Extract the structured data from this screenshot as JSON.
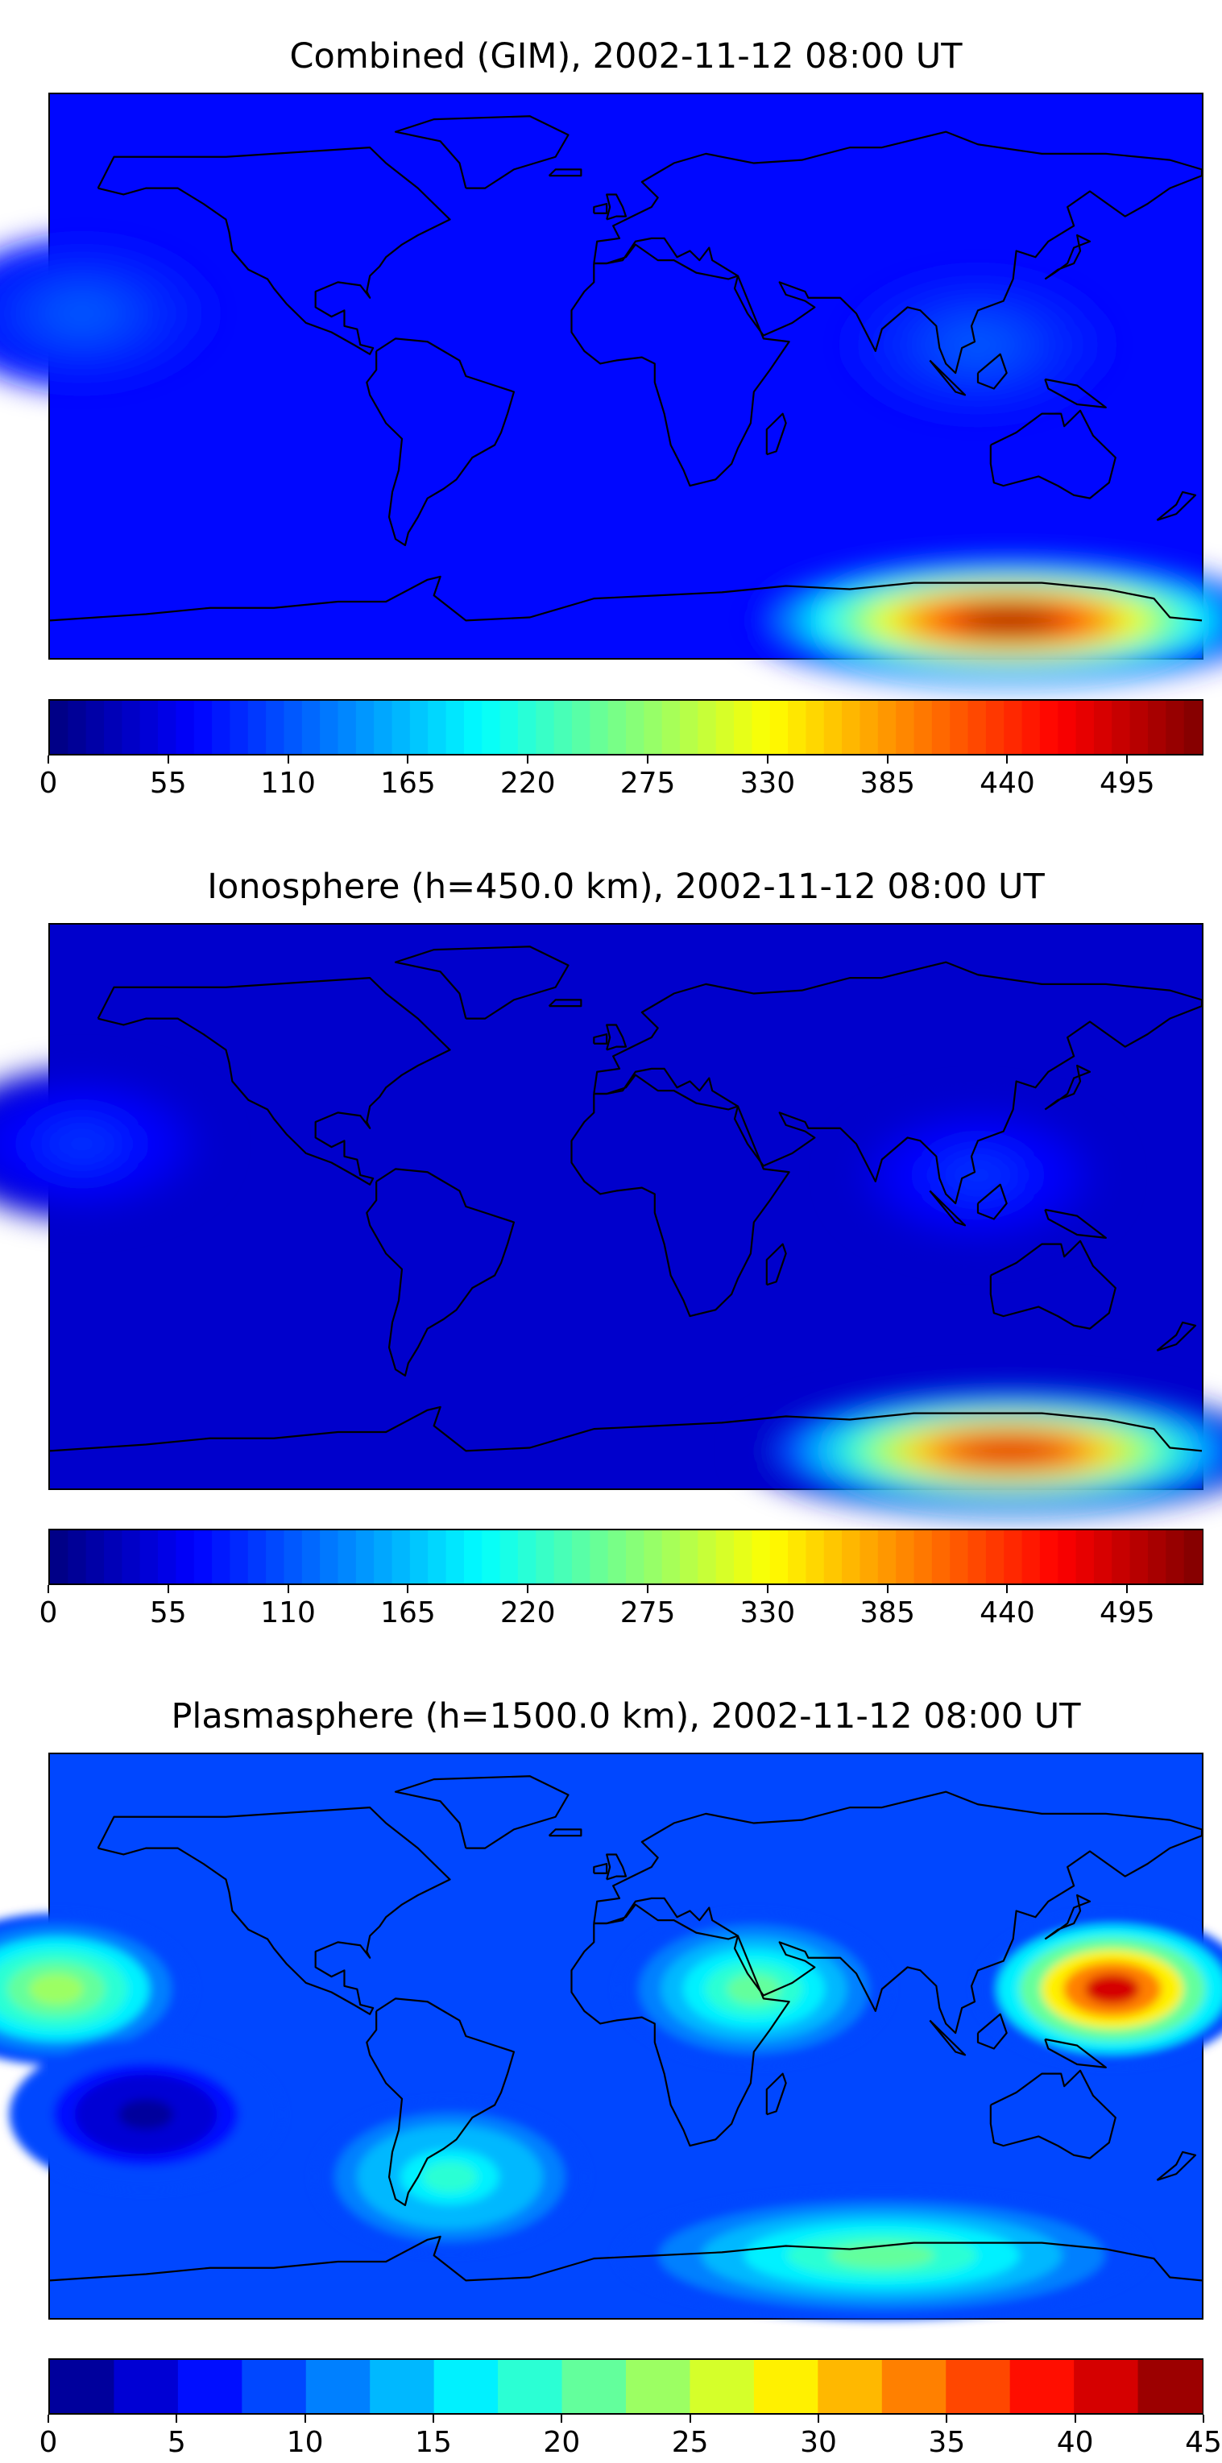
{
  "panels": [
    {
      "id": "combined",
      "title": "Combined (GIM), 2002-11-12 08:00 UT",
      "colormap": "jet",
      "colorbar": {
        "type": "continuous",
        "vmin": 0,
        "vmax": 530,
        "ticks": [
          0,
          55,
          110,
          165,
          220,
          275,
          330,
          385,
          440,
          495
        ]
      },
      "background_level": 70,
      "features": [
        {
          "name": "antarctic-maximum",
          "lon": 120,
          "lat": -78,
          "peak": 515
        },
        {
          "name": "asian-enhancement",
          "lon": 110,
          "lat": 10,
          "peak": 110
        },
        {
          "name": "pacific-enhancement",
          "lon": -170,
          "lat": 20,
          "peak": 110
        }
      ]
    },
    {
      "id": "ionosphere",
      "title": "Ionosphere  (h=450.0 km), 2002-11-12 08:00 UT",
      "colormap": "jet",
      "colorbar": {
        "type": "continuous",
        "vmin": 0,
        "vmax": 530,
        "ticks": [
          0,
          55,
          110,
          165,
          220,
          275,
          330,
          385,
          440,
          495
        ]
      },
      "background_level": 40,
      "features": [
        {
          "name": "antarctic-maximum",
          "lon": 120,
          "lat": -78,
          "peak": 480
        },
        {
          "name": "asian-enhancement",
          "lon": 110,
          "lat": 10,
          "peak": 90
        },
        {
          "name": "pacific-enhancement",
          "lon": -170,
          "lat": 20,
          "peak": 90
        }
      ]
    },
    {
      "id": "plasmasphere",
      "title": "Plasmasphere (h=1500.0 km), 2002-11-12 08:00 UT",
      "colormap": "jet",
      "colorbar": {
        "type": "discrete",
        "vmin": 0,
        "vmax": 45,
        "step": 2.5,
        "ticks": [
          0,
          5,
          10,
          15,
          20,
          25,
          30,
          35,
          40,
          45
        ]
      },
      "background_level": 9,
      "features": [
        {
          "name": "west-pacific-maximum",
          "lon": 152,
          "lat": 15,
          "peak": 40
        },
        {
          "name": "central-pacific-high",
          "lon": -178,
          "lat": 15,
          "peak": 24
        },
        {
          "name": "east-africa-high",
          "lon": 40,
          "lat": 15,
          "peak": 21
        },
        {
          "name": "south-america-high",
          "lon": -55,
          "lat": -45,
          "peak": 18
        },
        {
          "name": "antarctic-high",
          "lon": 80,
          "lat": -70,
          "peak": 22
        },
        {
          "name": "southeast-pacific-minimum",
          "lon": -150,
          "lat": -25,
          "peak": 2
        }
      ]
    }
  ],
  "map_style": {
    "coastline_color": "#000000",
    "frame_color": "#000000"
  }
}
